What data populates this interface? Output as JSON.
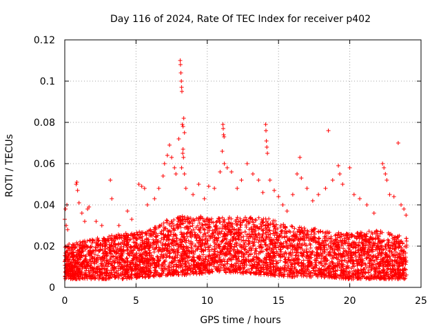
{
  "chart_data": {
    "type": "scatter",
    "title": "Day 116 of 2024, Rate Of TEC Index for receiver p402",
    "xlabel": "GPS time / hours",
    "ylabel": "ROTI / TECUs",
    "xlim": [
      0,
      25
    ],
    "ylim": [
      0,
      0.12
    ],
    "x_ticks": [
      0,
      5,
      10,
      15,
      20,
      25
    ],
    "y_ticks": [
      0,
      0.02,
      0.04,
      0.06,
      0.08,
      0.1,
      0.12
    ],
    "x_tick_labels": [
      "0",
      "5",
      "10",
      "15",
      "20",
      "25"
    ],
    "y_tick_labels": [
      "0",
      "0.02",
      "0.04",
      "0.06",
      "0.08",
      "0.1",
      "0.12"
    ],
    "grid": true,
    "marker": "+",
    "series": [
      {
        "name": "ROTI p402",
        "color": "#ff0000",
        "points": [
          [
            0.0,
            0.033
          ],
          [
            0.05,
            0.038
          ],
          [
            0.1,
            0.03
          ],
          [
            0.15,
            0.04
          ],
          [
            0.2,
            0.028
          ],
          [
            0.3,
            0.021
          ],
          [
            0.8,
            0.05
          ],
          [
            0.85,
            0.051
          ],
          [
            0.9,
            0.047
          ],
          [
            1.0,
            0.041
          ],
          [
            1.2,
            0.036
          ],
          [
            1.4,
            0.032
          ],
          [
            1.6,
            0.038
          ],
          [
            1.7,
            0.039
          ],
          [
            2.2,
            0.032
          ],
          [
            2.6,
            0.03
          ],
          [
            3.2,
            0.052
          ],
          [
            3.3,
            0.043
          ],
          [
            3.8,
            0.03
          ],
          [
            4.4,
            0.037
          ],
          [
            4.7,
            0.033
          ],
          [
            5.2,
            0.05
          ],
          [
            5.4,
            0.049
          ],
          [
            5.6,
            0.048
          ],
          [
            5.8,
            0.04
          ],
          [
            6.3,
            0.043
          ],
          [
            6.6,
            0.048
          ],
          [
            6.9,
            0.054
          ],
          [
            7.0,
            0.06
          ],
          [
            7.2,
            0.064
          ],
          [
            7.35,
            0.069
          ],
          [
            7.5,
            0.063
          ],
          [
            7.7,
            0.058
          ],
          [
            7.8,
            0.055
          ],
          [
            8.0,
            0.072
          ],
          [
            8.1,
            0.11
          ],
          [
            8.12,
            0.108
          ],
          [
            8.15,
            0.104
          ],
          [
            8.18,
            0.1
          ],
          [
            8.2,
            0.097
          ],
          [
            8.22,
            0.095
          ],
          [
            8.25,
            0.079
          ],
          [
            8.3,
            0.078
          ],
          [
            8.35,
            0.082
          ],
          [
            8.4,
            0.075
          ],
          [
            8.3,
            0.067
          ],
          [
            8.28,
            0.065
          ],
          [
            8.33,
            0.063
          ],
          [
            8.2,
            0.058
          ],
          [
            8.4,
            0.055
          ],
          [
            8.5,
            0.048
          ],
          [
            9.0,
            0.045
          ],
          [
            9.4,
            0.05
          ],
          [
            9.8,
            0.043
          ],
          [
            10.1,
            0.049
          ],
          [
            10.5,
            0.048
          ],
          [
            10.9,
            0.056
          ],
          [
            11.1,
            0.079
          ],
          [
            11.12,
            0.077
          ],
          [
            11.15,
            0.074
          ],
          [
            11.18,
            0.073
          ],
          [
            11.05,
            0.066
          ],
          [
            11.2,
            0.06
          ],
          [
            11.4,
            0.058
          ],
          [
            11.7,
            0.056
          ],
          [
            12.1,
            0.048
          ],
          [
            12.4,
            0.052
          ],
          [
            12.8,
            0.06
          ],
          [
            13.2,
            0.055
          ],
          [
            13.6,
            0.052
          ],
          [
            13.9,
            0.046
          ],
          [
            14.1,
            0.079
          ],
          [
            14.12,
            0.076
          ],
          [
            14.15,
            0.071
          ],
          [
            14.18,
            0.068
          ],
          [
            14.22,
            0.065
          ],
          [
            14.4,
            0.052
          ],
          [
            14.7,
            0.047
          ],
          [
            15.0,
            0.044
          ],
          [
            15.3,
            0.04
          ],
          [
            15.6,
            0.037
          ],
          [
            16.0,
            0.045
          ],
          [
            16.3,
            0.055
          ],
          [
            16.5,
            0.063
          ],
          [
            16.6,
            0.053
          ],
          [
            17.0,
            0.048
          ],
          [
            17.4,
            0.042
          ],
          [
            17.8,
            0.045
          ],
          [
            18.3,
            0.048
          ],
          [
            18.5,
            0.076
          ],
          [
            18.8,
            0.052
          ],
          [
            19.2,
            0.059
          ],
          [
            19.3,
            0.055
          ],
          [
            19.5,
            0.05
          ],
          [
            20.0,
            0.058
          ],
          [
            20.3,
            0.045
          ],
          [
            20.7,
            0.043
          ],
          [
            21.2,
            0.04
          ],
          [
            21.7,
            0.036
          ],
          [
            22.3,
            0.06
          ],
          [
            22.4,
            0.058
          ],
          [
            22.5,
            0.055
          ],
          [
            22.6,
            0.052
          ],
          [
            22.8,
            0.045
          ],
          [
            23.1,
            0.044
          ],
          [
            23.4,
            0.07
          ],
          [
            23.6,
            0.04
          ],
          [
            23.8,
            0.038
          ],
          [
            23.95,
            0.035
          ]
        ]
      }
    ],
    "dense_band": {
      "description": "Thousands of densely overlapping samples forming a continuous red band",
      "x_range": [
        0,
        24
      ],
      "profile": [
        {
          "x": 0,
          "min": 0.004,
          "typical_max": 0.02
        },
        {
          "x": 2,
          "min": 0.004,
          "typical_max": 0.024
        },
        {
          "x": 4,
          "min": 0.004,
          "typical_max": 0.026
        },
        {
          "x": 6,
          "min": 0.005,
          "typical_max": 0.028
        },
        {
          "x": 7.5,
          "min": 0.006,
          "typical_max": 0.034
        },
        {
          "x": 9,
          "min": 0.006,
          "typical_max": 0.035
        },
        {
          "x": 10,
          "min": 0.007,
          "typical_max": 0.034
        },
        {
          "x": 12,
          "min": 0.007,
          "typical_max": 0.034
        },
        {
          "x": 14,
          "min": 0.006,
          "typical_max": 0.034
        },
        {
          "x": 16,
          "min": 0.005,
          "typical_max": 0.03
        },
        {
          "x": 18,
          "min": 0.005,
          "typical_max": 0.028
        },
        {
          "x": 20,
          "min": 0.004,
          "typical_max": 0.026
        },
        {
          "x": 22,
          "min": 0.004,
          "typical_max": 0.028
        },
        {
          "x": 24,
          "min": 0.004,
          "typical_max": 0.024
        }
      ]
    }
  }
}
